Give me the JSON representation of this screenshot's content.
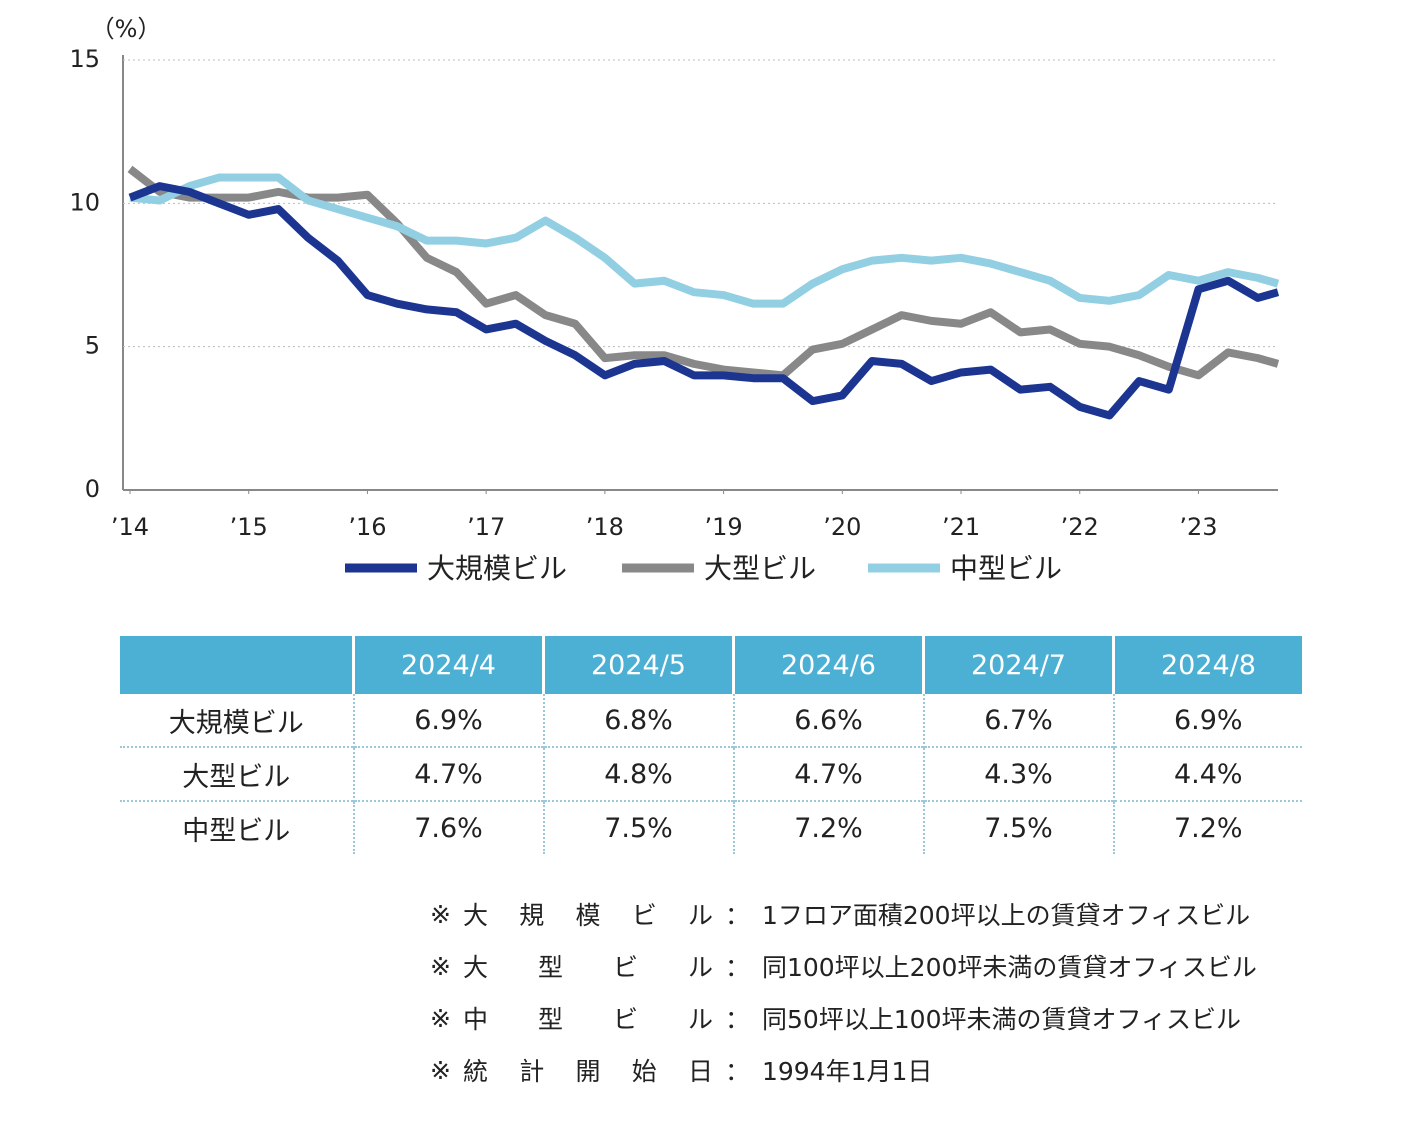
{
  "chart_data": {
    "type": "line",
    "y_label": "（%）",
    "x": [
      2014,
      2014.25,
      2014.5,
      2014.75,
      2015,
      2015.25,
      2015.5,
      2015.75,
      2016,
      2016.25,
      2016.5,
      2016.75,
      2017,
      2017.25,
      2017.5,
      2017.75,
      2018,
      2018.25,
      2018.5,
      2018.75,
      2019,
      2019.25,
      2019.5,
      2019.75,
      2020,
      2020.25,
      2020.5,
      2020.75,
      2021,
      2021.25,
      2021.5,
      2021.75,
      2022,
      2022.25,
      2022.5,
      2022.75,
      2023,
      2023.25,
      2023.5,
      2023.67
    ],
    "series": [
      {
        "name": "大規模ビル",
        "color": "#1b3591",
        "values": [
          10.2,
          10.6,
          10.4,
          10.0,
          9.6,
          9.8,
          8.8,
          8.0,
          6.8,
          6.5,
          6.3,
          6.2,
          5.6,
          5.8,
          5.2,
          4.7,
          4.0,
          4.4,
          4.5,
          4.0,
          4.0,
          3.9,
          3.9,
          3.1,
          3.3,
          4.5,
          4.4,
          3.8,
          4.1,
          4.2,
          3.5,
          3.6,
          2.9,
          2.6,
          3.8,
          3.5,
          7.0,
          7.3,
          6.7,
          6.9
        ]
      },
      {
        "name": "大型ビル",
        "color": "#888888",
        "values": [
          11.2,
          10.4,
          10.2,
          10.2,
          10.2,
          10.4,
          10.2,
          10.2,
          10.3,
          9.3,
          8.1,
          7.6,
          6.5,
          6.8,
          6.1,
          5.8,
          4.6,
          4.7,
          4.7,
          4.4,
          4.2,
          4.1,
          4.0,
          4.9,
          5.1,
          5.6,
          6.1,
          5.9,
          5.8,
          6.2,
          5.5,
          5.6,
          5.1,
          5.0,
          4.7,
          4.3,
          4.0,
          4.8,
          4.6,
          4.4
        ]
      },
      {
        "name": "中型ビル",
        "color": "#92cfe3",
        "values": [
          10.2,
          10.1,
          10.6,
          10.9,
          10.9,
          10.9,
          10.1,
          9.8,
          9.5,
          9.2,
          8.7,
          8.7,
          8.6,
          8.8,
          9.4,
          8.8,
          8.1,
          7.2,
          7.3,
          6.9,
          6.8,
          6.5,
          6.5,
          7.2,
          7.7,
          8.0,
          8.1,
          8.0,
          8.1,
          7.9,
          7.6,
          7.3,
          6.7,
          6.6,
          6.8,
          7.5,
          7.3,
          7.6,
          7.4,
          7.2
        ]
      }
    ],
    "xlim": [
      2014,
      2023.67
    ],
    "xticks": [
      {
        "value": 2014,
        "label": "’14"
      },
      {
        "value": 2015,
        "label": "’15"
      },
      {
        "value": 2016,
        "label": "’16"
      },
      {
        "value": 2017,
        "label": "’17"
      },
      {
        "value": 2018,
        "label": "’18"
      },
      {
        "value": 2019,
        "label": "’19"
      },
      {
        "value": 2020,
        "label": "’20"
      },
      {
        "value": 2021,
        "label": "’21"
      },
      {
        "value": 2022,
        "label": "’22"
      },
      {
        "value": 2023,
        "label": "’23"
      }
    ],
    "ylim": [
      0,
      15
    ],
    "yticks": [
      0,
      5,
      10,
      15
    ],
    "grid": true
  },
  "table": {
    "header": [
      "2024/4",
      "2024/5",
      "2024/6",
      "2024/7",
      "2024/8"
    ],
    "rows": [
      [
        "大規模ビル",
        "6.9%",
        "6.8%",
        "6.6%",
        "6.7%",
        "6.9%"
      ],
      [
        "大型ビル",
        "4.7%",
        "4.8%",
        "4.7%",
        "4.3%",
        "4.4%"
      ],
      [
        "中型ビル",
        "7.6%",
        "7.5%",
        "7.2%",
        "7.5%",
        "7.2%"
      ]
    ]
  },
  "notes": {
    "mark": "※",
    "separator": "：",
    "items": [
      {
        "label": "大規模ビル",
        "text": "1フロア面積200坪以上の賃貸オフィスビル"
      },
      {
        "label": "大型ビル",
        "text": "同100坪以上200坪未満の賃貸オフィスビル"
      },
      {
        "label": "中型ビル",
        "text": "同50坪以上100坪未満の賃貸オフィスビル"
      },
      {
        "label": "統計開始日",
        "text": "1994年1月1日"
      }
    ]
  }
}
